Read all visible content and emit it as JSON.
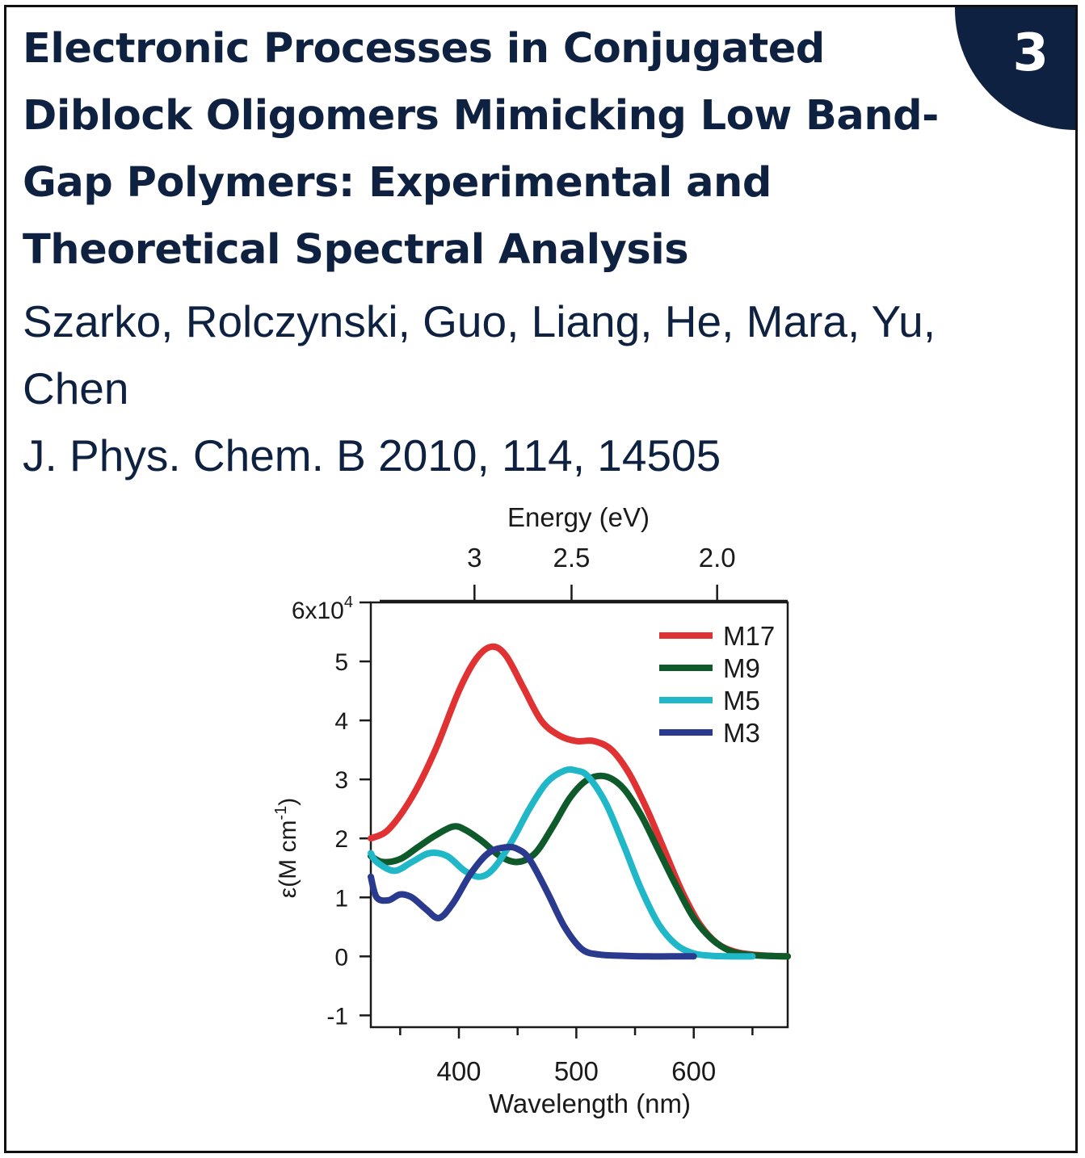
{
  "badge": {
    "number": "3"
  },
  "title": "Electronic Processes in Conjugated Diblock Oligomers Mimicking Low Band-Gap Polymers: Experimental and Theoretical Spectral Analysis",
  "authors": "Szarko, Rolczynski, Guo, Liang, He, Mara, Yu, Chen",
  "citation": "J. Phys. Chem. B 2010, 114, 14505",
  "colors": {
    "navy": "#0e2140",
    "M17": "#e03232",
    "M9": "#0f5a2a",
    "M5": "#20b8c8",
    "M3": "#2a3a8e"
  },
  "chart_data": {
    "type": "line",
    "xlabel": "Wavelength (nm)",
    "ylabel": "ε(M cm",
    "ylabel_sup": "-1",
    "ylabel_close": ")",
    "top_axis_label": "Energy (eV)",
    "y_multiplier_base": "6x10",
    "y_multiplier_exp": "4",
    "xlim": [
      325,
      680
    ],
    "ylim": [
      -1.2,
      6
    ],
    "x_ticks": [
      400,
      500,
      600
    ],
    "x_minor_ticks": [
      350,
      450,
      550,
      650
    ],
    "y_ticks": [
      -1,
      0,
      1,
      2,
      3,
      4,
      5
    ],
    "top_ticks": [
      {
        "label": "3",
        "ev": 3.0
      },
      {
        "label": "2.5",
        "ev": 2.5
      },
      {
        "label": "2.0",
        "ev": 2.0
      }
    ],
    "legend_position": "top-right",
    "series": [
      {
        "name": "M17",
        "color": "#e03232",
        "x": [
          325,
          340,
          360,
          380,
          400,
          415,
          428,
          440,
          455,
          470,
          485,
          500,
          515,
          530,
          545,
          560,
          575,
          590,
          605,
          620,
          635,
          650,
          665,
          680
        ],
        "y": [
          2.0,
          2.15,
          2.7,
          3.5,
          4.5,
          5.05,
          5.25,
          5.1,
          4.55,
          4.0,
          3.75,
          3.65,
          3.65,
          3.5,
          3.1,
          2.5,
          1.8,
          1.1,
          0.55,
          0.22,
          0.08,
          0.03,
          0.01,
          0.0
        ]
      },
      {
        "name": "M9",
        "color": "#0f5a2a",
        "x": [
          325,
          335,
          350,
          365,
          380,
          395,
          405,
          420,
          435,
          450,
          465,
          480,
          495,
          510,
          525,
          540,
          555,
          570,
          585,
          600,
          615,
          630,
          645,
          660,
          680
        ],
        "y": [
          1.7,
          1.6,
          1.65,
          1.85,
          2.05,
          2.2,
          2.15,
          1.95,
          1.7,
          1.6,
          1.75,
          2.2,
          2.7,
          3.0,
          3.05,
          2.85,
          2.4,
          1.8,
          1.2,
          0.65,
          0.3,
          0.1,
          0.03,
          0.01,
          0.0
        ]
      },
      {
        "name": "M5",
        "color": "#20b8c8",
        "x": [
          325,
          330,
          345,
          360,
          375,
          390,
          405,
          418,
          430,
          445,
          460,
          475,
          490,
          500,
          510,
          525,
          540,
          555,
          570,
          585,
          600,
          615,
          630,
          650
        ],
        "y": [
          1.75,
          1.6,
          1.45,
          1.6,
          1.75,
          1.7,
          1.45,
          1.35,
          1.5,
          1.95,
          2.5,
          2.95,
          3.15,
          3.15,
          3.05,
          2.6,
          1.9,
          1.15,
          0.55,
          0.2,
          0.05,
          0.01,
          0.0,
          0.0
        ]
      },
      {
        "name": "M3",
        "color": "#2a3a8e",
        "x": [
          325,
          330,
          340,
          350,
          360,
          372,
          383,
          395,
          410,
          425,
          440,
          450,
          460,
          475,
          490,
          505,
          520,
          540,
          560,
          580,
          600
        ],
        "y": [
          1.35,
          1.0,
          0.95,
          1.05,
          1.0,
          0.8,
          0.65,
          0.9,
          1.4,
          1.75,
          1.85,
          1.82,
          1.65,
          1.1,
          0.5,
          0.12,
          0.03,
          0.01,
          0.0,
          0.0,
          0.0
        ]
      }
    ]
  }
}
